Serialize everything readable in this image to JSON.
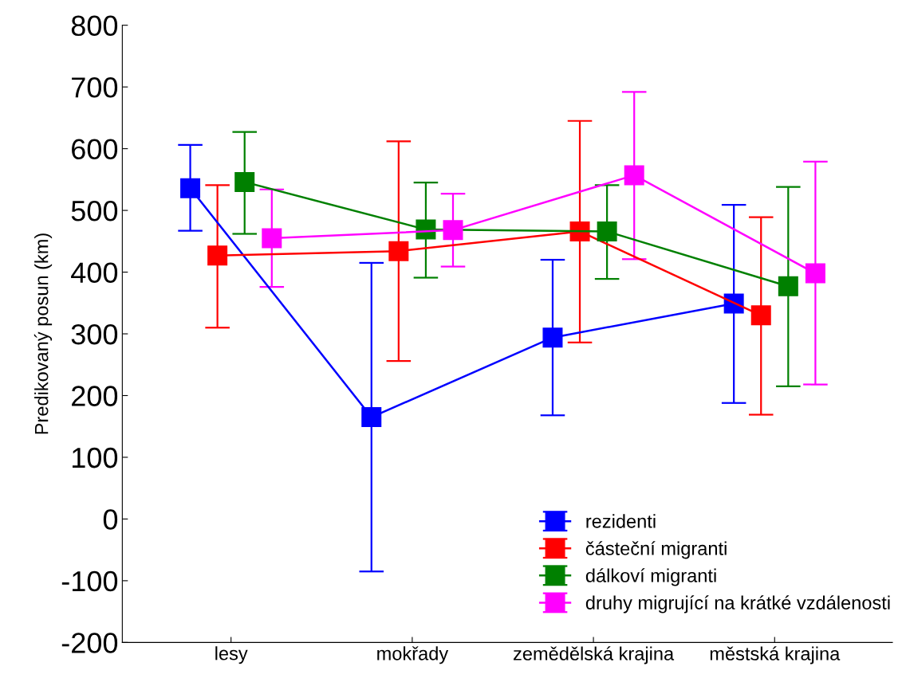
{
  "chart_data": {
    "type": "line",
    "ylabel": "Predikovaný posun (km)",
    "categories": [
      "lesy",
      "mokřady",
      "zemědělská krajina",
      "městská krajina"
    ],
    "series": [
      {
        "name": "rezidenti",
        "color": "#0000ff",
        "values": [
          536,
          165,
          294,
          349
        ],
        "errors": [
          [
            467,
            606
          ],
          [
            -85,
            415
          ],
          [
            168,
            420
          ],
          [
            188,
            509
          ]
        ]
      },
      {
        "name": "částeční migranti",
        "color": "#ff0000",
        "values": [
          427,
          434,
          466,
          330
        ],
        "errors": [
          [
            310,
            541
          ],
          [
            256,
            612
          ],
          [
            286,
            645
          ],
          [
            169,
            489
          ]
        ]
      },
      {
        "name": "dálkoví migranti",
        "color": "#008000",
        "values": [
          546,
          469,
          466,
          377
        ],
        "errors": [
          [
            462,
            627
          ],
          [
            391,
            545
          ],
          [
            389,
            541
          ],
          [
            215,
            538
          ]
        ]
      },
      {
        "name": "druhy migrující na krátké vzdálenosti",
        "color": "#ff00ff",
        "values": [
          455,
          468,
          557,
          398
        ],
        "errors": [
          [
            376,
            534
          ],
          [
            409,
            527
          ],
          [
            421,
            692
          ],
          [
            218,
            579
          ]
        ]
      }
    ],
    "ylim": [
      -200,
      800
    ],
    "yticks": [
      -200,
      -100,
      0,
      100,
      200,
      300,
      400,
      500,
      600,
      700,
      800
    ],
    "marker": "square",
    "line_style": "solid",
    "legend": "bottom right",
    "grid": false
  }
}
